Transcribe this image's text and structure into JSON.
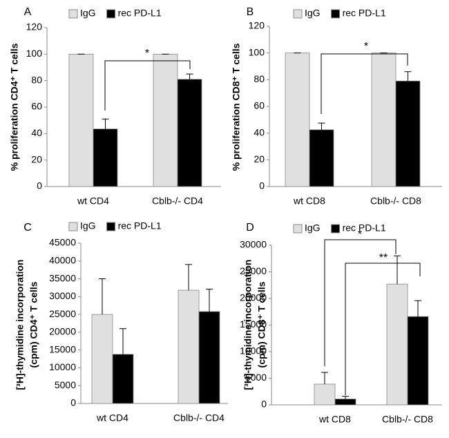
{
  "chart_data": [
    {
      "type": "bar",
      "panel": "A",
      "ylabel": [
        "% proliferation CD4⁺ T cells"
      ],
      "categories": [
        "wt CD4",
        "Cblb-/- CD4"
      ],
      "series": [
        {
          "name": "IgG",
          "color": "#e0e0e0",
          "values": [
            100,
            100
          ],
          "errors": [
            0,
            0
          ]
        },
        {
          "name": "rec PD-L1",
          "color": "#000000",
          "values": [
            43.5,
            81
          ],
          "errors": [
            7.5,
            4
          ]
        }
      ],
      "ylim": [
        0,
        120
      ],
      "yticks": [
        0,
        20,
        40,
        60,
        80,
        100,
        120
      ],
      "annotations": [
        "*"
      ]
    },
    {
      "type": "bar",
      "panel": "B",
      "ylabel": [
        "% proliferation CD8⁺ T cells"
      ],
      "categories": [
        "wt CD8",
        "Cblb-/-  CD8"
      ],
      "series": [
        {
          "name": "IgG",
          "color": "#e0e0e0",
          "values": [
            100,
            100
          ],
          "errors": [
            0,
            0
          ]
        },
        {
          "name": "rec PD-L1",
          "color": "#000000",
          "values": [
            42.5,
            79
          ],
          "errors": [
            5,
            7
          ]
        }
      ],
      "ylim": [
        0,
        120
      ],
      "yticks": [
        0,
        20,
        40,
        60,
        80,
        100,
        120
      ],
      "annotations": [
        "*"
      ]
    },
    {
      "type": "bar",
      "panel": "C",
      "ylabel": [
        "[³H]-thymidine incorporation",
        "(cpm) CD4⁺ T cells"
      ],
      "categories": [
        "wt CD4",
        "Cblb-/- CD4"
      ],
      "series": [
        {
          "name": "IgG",
          "color": "#e0e0e0",
          "values": [
            25000,
            31800
          ],
          "errors": [
            10000,
            7200
          ]
        },
        {
          "name": "rec PD-L1",
          "color": "#000000",
          "values": [
            13800,
            25800
          ],
          "errors": [
            7200,
            6300
          ]
        }
      ],
      "ylim": [
        0,
        45000
      ],
      "yticks": [
        0,
        5000,
        10000,
        15000,
        20000,
        25000,
        30000,
        35000,
        40000,
        45000
      ],
      "annotations": []
    },
    {
      "type": "bar",
      "panel": "D",
      "ylabel": [
        "[³H]-thymidine incorporation",
        "(cpm) CD8⁺ T cells"
      ],
      "categories": [
        "wt CD8",
        "Cblb-/-   CD8"
      ],
      "series": [
        {
          "name": "IgG",
          "color": "#e0e0e0",
          "values": [
            3900,
            22700
          ],
          "errors": [
            2200,
            5300
          ]
        },
        {
          "name": "rec PD-L1",
          "color": "#000000",
          "values": [
            1100,
            16600
          ],
          "errors": [
            500,
            3000
          ]
        }
      ],
      "ylim": [
        0,
        30000
      ],
      "yticks": [
        0,
        5000,
        10000,
        15000,
        20000,
        25000,
        30000
      ],
      "annotations": [
        "*",
        "**"
      ]
    }
  ]
}
